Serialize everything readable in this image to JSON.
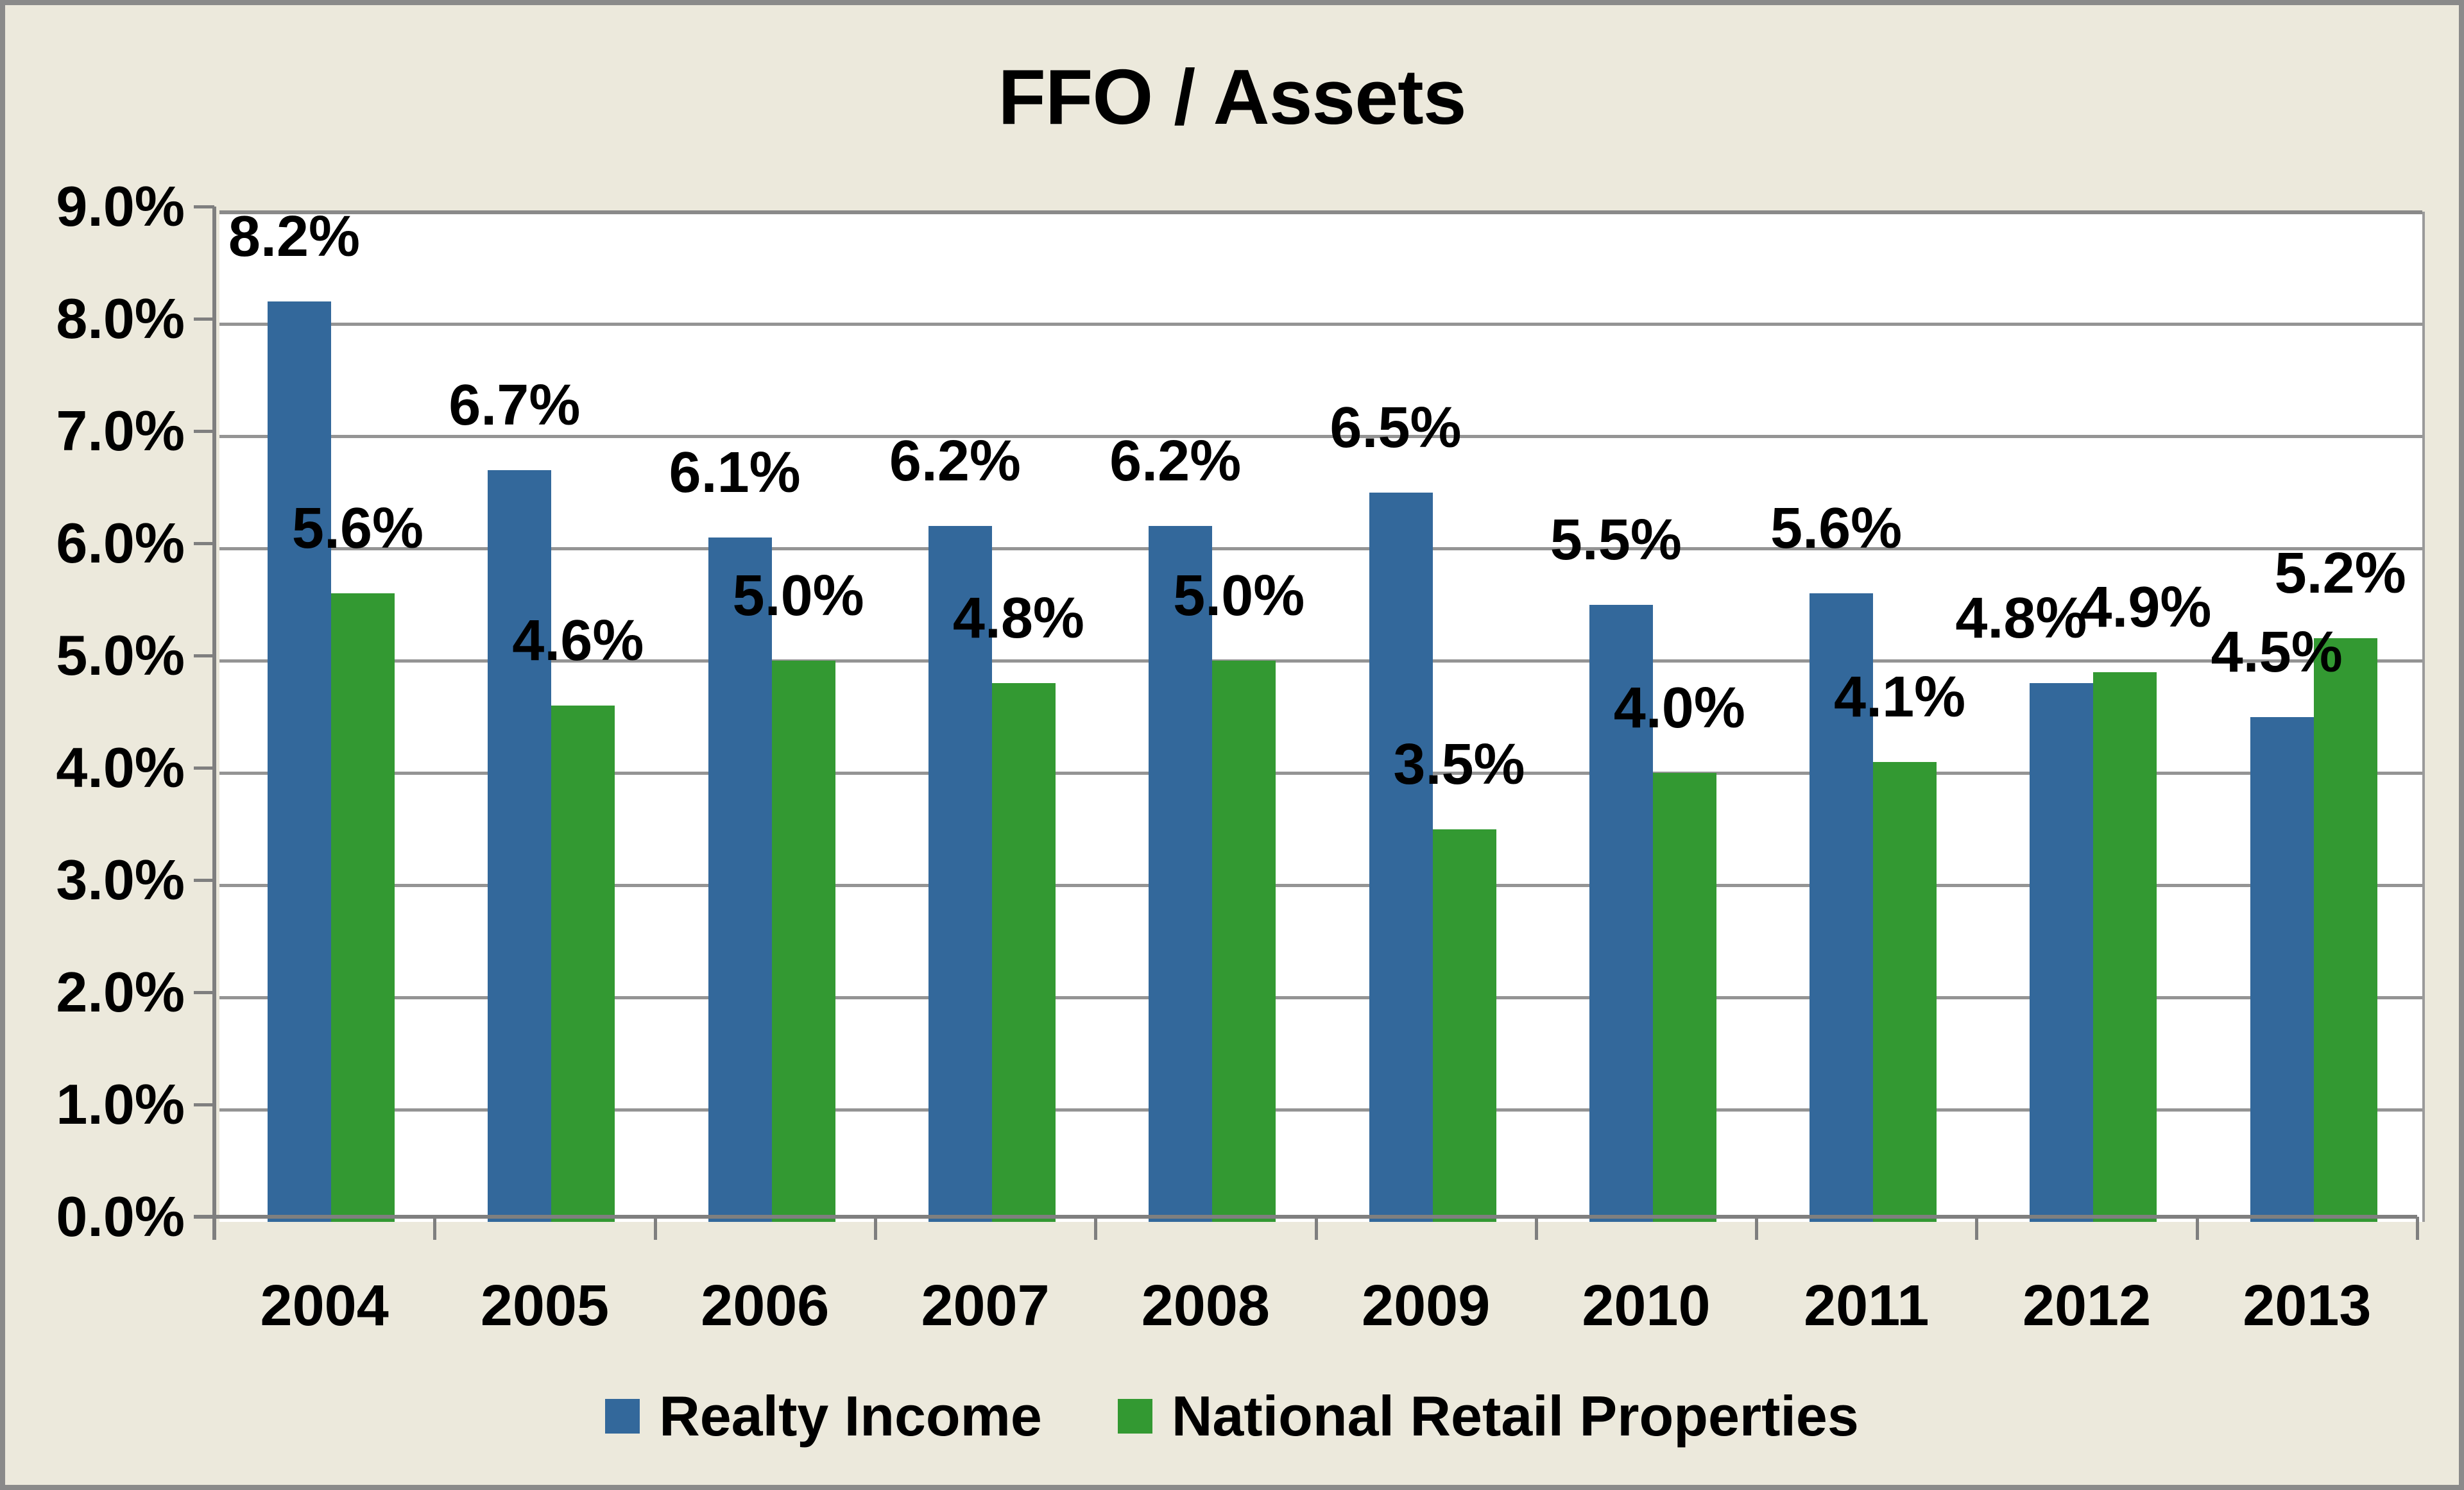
{
  "title": {
    "text": "FFO / Assets"
  },
  "legend": {
    "position": "bottom",
    "items": [
      {
        "label": "Realty Income",
        "color": "#33689B"
      },
      {
        "label": "National Retail Properties",
        "color": "#339932"
      }
    ]
  },
  "chart_data": {
    "type": "bar",
    "title": "FFO / Assets",
    "categories": [
      "2004",
      "2005",
      "2006",
      "2007",
      "2008",
      "2009",
      "2010",
      "2011",
      "2012",
      "2013"
    ],
    "series": [
      {
        "name": "Realty Income",
        "color": "#33689B",
        "values": [
          8.2,
          6.7,
          6.1,
          6.2,
          6.2,
          6.5,
          5.5,
          5.6,
          4.8,
          4.5
        ],
        "labels": [
          "8.2%",
          "6.7%",
          "6.1%",
          "6.2%",
          "6.2%",
          "6.5%",
          "5.5%",
          "5.6%",
          "4.8%",
          "4.5%"
        ],
        "label_dx": [
          0,
          0,
          0,
          0,
          0,
          0,
          0,
          0,
          -55,
          0
        ]
      },
      {
        "name": "National Retail Properties",
        "color": "#339932",
        "values": [
          5.6,
          4.6,
          5.0,
          4.8,
          5.0,
          3.5,
          4.0,
          4.1,
          4.9,
          5.2
        ],
        "labels": [
          "5.6%",
          "4.6%",
          "5.0%",
          "4.8%",
          "5.0%",
          "3.5%",
          "4.0%",
          "4.1%",
          "4.9%",
          "5.2%"
        ],
        "label_dx": [
          0,
          0,
          0,
          0,
          0,
          0,
          0,
          0,
          40,
          0
        ]
      }
    ],
    "xlabel": "",
    "ylabel": "",
    "y_axis": {
      "min": 0,
      "max": 9,
      "step": 1,
      "tick_labels": [
        "0.0%",
        "1.0%",
        "2.0%",
        "3.0%",
        "4.0%",
        "5.0%",
        "6.0%",
        "7.0%",
        "8.0%",
        "9.0%"
      ]
    },
    "grid": true,
    "legend_position": "bottom",
    "style_colors": {
      "background": "#ECE9DC",
      "plot_background": "#FFFFFF",
      "gridline": "#949494",
      "axis": "#7F7F7F",
      "frame_border": "#8A8A8A",
      "text": "#000000"
    }
  }
}
